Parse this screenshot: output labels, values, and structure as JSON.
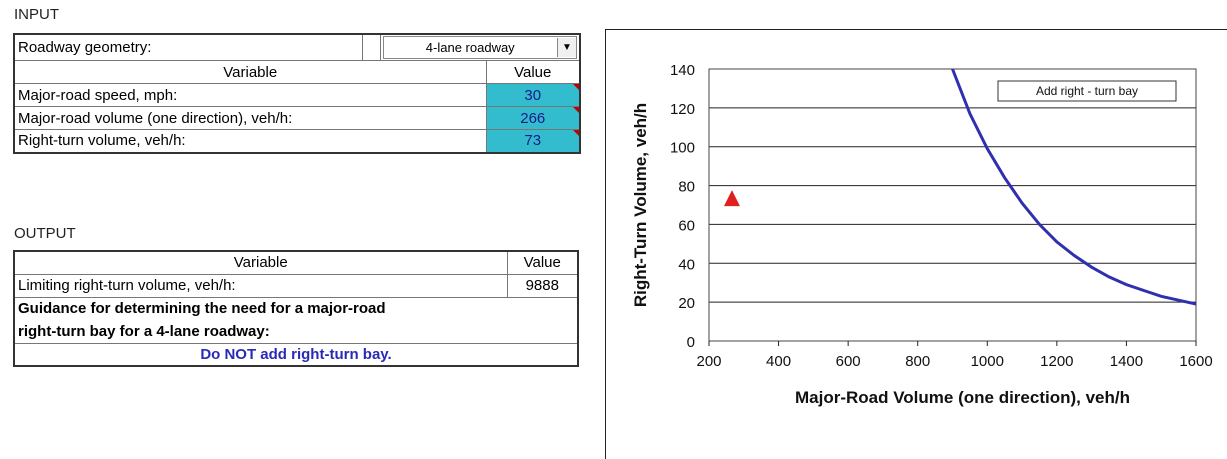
{
  "input": {
    "section_label": "INPUT",
    "geometry_label": "Roadway geometry:",
    "geometry_value": "4-lane roadway",
    "header_variable": "Variable",
    "header_value": "Value",
    "rows": [
      {
        "label": "Major-road speed, mph:",
        "value": "30"
      },
      {
        "label": "Major-road volume (one direction), veh/h:",
        "value": "266"
      },
      {
        "label": "Right-turn volume, veh/h:",
        "value": "73"
      }
    ]
  },
  "output": {
    "section_label": "OUTPUT",
    "header_variable": "Variable",
    "header_value": "Value",
    "limit_label": "Limiting right-turn volume, veh/h:",
    "limit_value": "9888",
    "guidance_line1": "Guidance for determining the need for a major-road",
    "guidance_line2": "right-turn bay for a 4-lane roadway:",
    "guidance_result": "Do NOT add right-turn bay."
  },
  "chart_data": {
    "type": "line",
    "title": "",
    "xlabel": "Major-Road Volume (one direction), veh/h",
    "ylabel": "Right-Turn Volume, veh/h",
    "xlim": [
      200,
      1600
    ],
    "ylim": [
      0,
      140
    ],
    "xticks": [
      200,
      400,
      600,
      800,
      1000,
      1200,
      1400,
      1600
    ],
    "yticks": [
      0,
      20,
      40,
      60,
      80,
      100,
      120,
      140
    ],
    "grid": "horizontal",
    "annotation": "Add right - turn bay",
    "series": [
      {
        "color": "#2f2fb0",
        "x": [
          900,
          950,
          1000,
          1050,
          1100,
          1150,
          1200,
          1250,
          1300,
          1350,
          1400,
          1450,
          1500,
          1550,
          1600
        ],
        "y": [
          140,
          117,
          99,
          84,
          71,
          60,
          51,
          44,
          38,
          33,
          29,
          26,
          23,
          21,
          19
        ]
      }
    ],
    "point": {
      "x": 266,
      "y": 73,
      "color": "#e02020"
    }
  }
}
